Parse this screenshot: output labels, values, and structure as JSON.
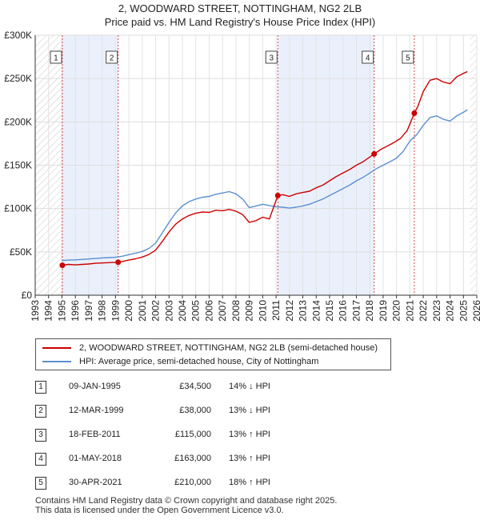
{
  "chart_data": {
    "type": "line",
    "title": "2, WOODWARD STREET, NOTTINGHAM, NG2 2LB",
    "subtitle": "Price paid vs. HM Land Registry's House Price Index (HPI)",
    "xlabel": "",
    "ylabel": "",
    "xlim": [
      1993,
      2026
    ],
    "ylim": [
      0,
      300000
    ],
    "y_ticks": [
      0,
      50000,
      100000,
      150000,
      200000,
      250000,
      300000
    ],
    "y_tick_labels": [
      "£0",
      "£50K",
      "£100K",
      "£150K",
      "£200K",
      "£250K",
      "£300K"
    ],
    "x_ticks": [
      1993,
      1994,
      1995,
      1996,
      1997,
      1998,
      1999,
      2000,
      2001,
      2002,
      2003,
      2004,
      2005,
      2006,
      2007,
      2008,
      2009,
      2010,
      2011,
      2012,
      2013,
      2014,
      2015,
      2016,
      2017,
      2018,
      2019,
      2020,
      2021,
      2022,
      2023,
      2024,
      2025,
      2026
    ],
    "x_tick_labels": [
      "1993",
      "1994",
      "1995",
      "1996",
      "1997",
      "1998",
      "1999",
      "2000",
      "2001",
      "2002",
      "2003",
      "2004",
      "2005",
      "2006",
      "2007",
      "2008",
      "2009",
      "2010",
      "2011",
      "2012",
      "2013",
      "2014",
      "2015",
      "2016",
      "2017",
      "2018",
      "2019",
      "2020",
      "2021",
      "2022",
      "2023",
      "2024",
      "2025",
      "2026"
    ],
    "grid": true,
    "hatched_before": 1995.0,
    "hatched_after": 2025.5,
    "series": [
      {
        "name": "2, WOODWARD STREET, NOTTINGHAM, NG2 2LB (semi-detached house)",
        "color": "#cc0000",
        "x": [
          1995.03,
          1995.5,
          1996,
          1996.5,
          1997,
          1997.5,
          1998,
          1998.5,
          1999.2,
          1999.5,
          2000,
          2000.5,
          2001,
          2001.5,
          2002,
          2002.5,
          2003,
          2003.5,
          2004,
          2004.5,
          2005,
          2005.5,
          2006,
          2006.5,
          2007,
          2007.5,
          2008,
          2008.5,
          2009,
          2009.5,
          2010,
          2010.5,
          2011.13,
          2011.5,
          2012,
          2012.5,
          2013,
          2013.5,
          2014,
          2014.5,
          2015,
          2015.5,
          2016,
          2016.5,
          2017,
          2017.5,
          2018.33,
          2018.8,
          2019.3,
          2019.8,
          2020.3,
          2020.8,
          2021.33,
          2021.6,
          2022,
          2022.5,
          2023,
          2023.5,
          2024,
          2024.5,
          2025,
          2025.3
        ],
        "y": [
          34500,
          35500,
          35000,
          35500,
          36000,
          36800,
          37200,
          37600,
          38000,
          39000,
          40500,
          42000,
          44000,
          47000,
          52000,
          62000,
          73000,
          82000,
          88000,
          92000,
          94500,
          96000,
          95500,
          98000,
          97500,
          99000,
          97000,
          93000,
          84000,
          86000,
          90000,
          88000,
          115000,
          116000,
          114000,
          117000,
          118500,
          120000,
          124000,
          127000,
          132000,
          137000,
          141000,
          145000,
          150000,
          154000,
          163000,
          168000,
          172000,
          176000,
          181000,
          190000,
          210000,
          218000,
          235000,
          248000,
          250000,
          246000,
          244000,
          252000,
          256000,
          258000
        ]
      },
      {
        "name": "HPI: Average price, semi-detached house, City of Nottingham",
        "color": "#5b8fd0",
        "x": [
          1995,
          1995.5,
          1996,
          1996.5,
          1997,
          1997.5,
          1998,
          1998.5,
          1999,
          1999.5,
          2000,
          2000.5,
          2001,
          2001.5,
          2002,
          2002.5,
          2003,
          2003.5,
          2004,
          2004.5,
          2005,
          2005.5,
          2006,
          2006.5,
          2007,
          2007.5,
          2008,
          2008.5,
          2009,
          2009.5,
          2010,
          2010.5,
          2011,
          2011.5,
          2012,
          2012.5,
          2013,
          2013.5,
          2014,
          2014.5,
          2015,
          2015.5,
          2016,
          2016.5,
          2017,
          2017.5,
          2018,
          2018.5,
          2019,
          2019.5,
          2020,
          2020.5,
          2021,
          2021.5,
          2022,
          2022.5,
          2023,
          2023.5,
          2024,
          2024.5,
          2025,
          2025.3
        ],
        "y": [
          40000,
          40500,
          40800,
          41300,
          41800,
          42400,
          43000,
          43400,
          43800,
          45000,
          46800,
          48500,
          50500,
          54000,
          60000,
          72000,
          84000,
          95000,
          103000,
          108000,
          111000,
          113000,
          114000,
          116500,
          118000,
          119500,
          117000,
          111000,
          101000,
          103000,
          105000,
          103500,
          102000,
          101500,
          100500,
          101500,
          103000,
          105000,
          108000,
          111000,
          115000,
          119000,
          123000,
          127000,
          132000,
          136000,
          141000,
          146000,
          150000,
          154000,
          158000,
          166000,
          178000,
          185000,
          196000,
          205000,
          207000,
          203000,
          201000,
          207000,
          211000,
          214000
        ]
      }
    ],
    "transactions": [
      {
        "num": "1",
        "x": 1995.03,
        "price": 34500
      },
      {
        "num": "2",
        "x": 1999.2,
        "price": 38000
      },
      {
        "num": "3",
        "x": 2011.13,
        "price": 115000
      },
      {
        "num": "4",
        "x": 2018.33,
        "price": 163000
      },
      {
        "num": "5",
        "x": 2021.33,
        "price": 210000
      }
    ]
  },
  "legend": {
    "entries": [
      {
        "label": "2, WOODWARD STREET, NOTTINGHAM, NG2 2LB (semi-detached house)",
        "color": "#cc0000"
      },
      {
        "label": "HPI: Average price, semi-detached house, City of Nottingham",
        "color": "#5b8fd0"
      }
    ]
  },
  "table": {
    "rows": [
      {
        "num": "1",
        "date": "09-JAN-1995",
        "price": "£34,500",
        "hpi": "14% ↓ HPI"
      },
      {
        "num": "2",
        "date": "12-MAR-1999",
        "price": "£38,000",
        "hpi": "13% ↓ HPI"
      },
      {
        "num": "3",
        "date": "18-FEB-2011",
        "price": "£115,000",
        "hpi": "13% ↑ HPI"
      },
      {
        "num": "4",
        "date": "01-MAY-2018",
        "price": "£163,000",
        "hpi": "13% ↑ HPI"
      },
      {
        "num": "5",
        "date": "30-APR-2021",
        "price": "£210,000",
        "hpi": "18% ↑ HPI"
      }
    ]
  },
  "footer": {
    "line1": "Contains HM Land Registry data © Crown copyright and database right 2025.",
    "line2": "This data is licensed under the Open Government Licence v3.0."
  }
}
